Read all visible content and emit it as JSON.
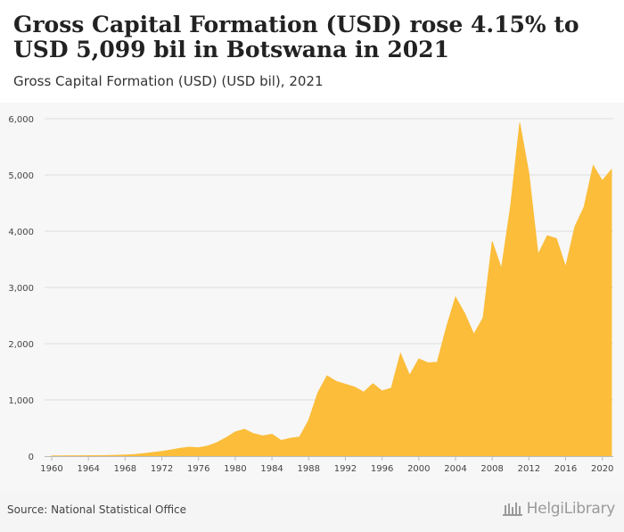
{
  "header": {
    "title": "Gross Capital Formation (USD) rose 4.15% to USD 5,099 bil in Botswana in 2021",
    "subtitle": "Gross Capital Formation (USD) (USD bil), 2021"
  },
  "footer": {
    "source": "Source: National Statistical Office",
    "logo": "HelgiLibrary"
  },
  "colors": {
    "area_fill": "#fbbd3a",
    "gridline": "#dddddd",
    "background": "#f7f7f7"
  },
  "chart_data": {
    "type": "area",
    "title": "Gross Capital Formation (USD) rose 4.15% to USD 5,099 bil in Botswana in 2021",
    "subtitle": "Gross Capital Formation (USD) (USD bil), 2021",
    "xlabel": "",
    "ylabel": "",
    "ylim": [
      0,
      6000
    ],
    "xlim": [
      1960,
      2021
    ],
    "grid": true,
    "legend": "none",
    "y_ticks": [
      "0",
      "1,000",
      "2,000",
      "3,000",
      "4,000",
      "5,000",
      "6,000"
    ],
    "x_ticks": [
      "1960",
      "1964",
      "1968",
      "1972",
      "1976",
      "1980",
      "1984",
      "1988",
      "1992",
      "1996",
      "2000",
      "2004",
      "2008",
      "2012",
      "2016",
      "2020"
    ],
    "series": [
      {
        "x": [
          1960,
          1961,
          1962,
          1963,
          1964,
          1965,
          1966,
          1967,
          1968,
          1969,
          1970,
          1971,
          1972,
          1973,
          1974,
          1975,
          1976,
          1977,
          1978,
          1979,
          1980,
          1981,
          1982,
          1983,
          1984,
          1985,
          1986,
          1987,
          1988,
          1989,
          1990,
          1991,
          1992,
          1993,
          1994,
          1995,
          1996,
          1997,
          1998,
          1999,
          2000,
          2001,
          2002,
          2003,
          2004,
          2005,
          2006,
          2007,
          2008,
          2009,
          2010,
          2011,
          2012,
          2013,
          2014,
          2015,
          2016,
          2017,
          2018,
          2019,
          2020,
          2021
        ],
        "values": [
          5,
          6,
          7,
          8,
          9,
          10,
          12,
          16,
          22,
          30,
          45,
          65,
          85,
          110,
          140,
          160,
          150,
          180,
          240,
          330,
          430,
          480,
          400,
          360,
          390,
          280,
          320,
          340,
          640,
          1130,
          1430,
          1330,
          1280,
          1230,
          1140,
          1290,
          1160,
          1210,
          1830,
          1440,
          1730,
          1660,
          1670,
          2290,
          2830,
          2540,
          2170,
          2460,
          3820,
          3340,
          4450,
          5930,
          5030,
          3590,
          3920,
          3870,
          3370,
          4080,
          4430,
          5170,
          4900,
          5099
        ]
      }
    ]
  }
}
